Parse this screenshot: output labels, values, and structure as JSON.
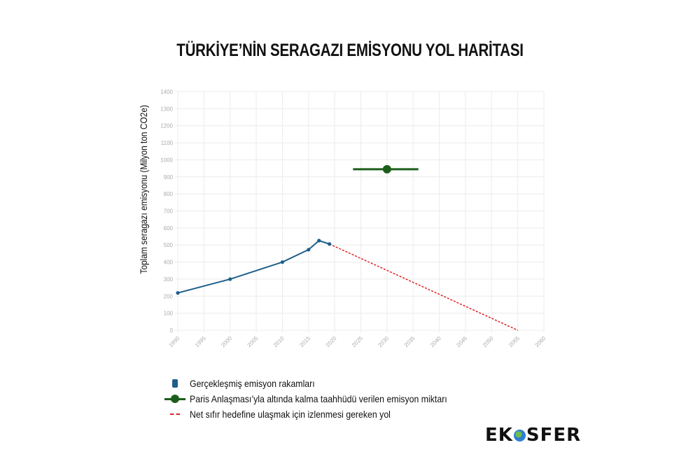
{
  "title": "TÜRKİYE’NİN SERAGAZI EMİSYONU YOL HARİTASI",
  "axes": {
    "ylabel": "Toplam seragazı emisyonu (Milyon ton CO2e)",
    "yticks": [
      "0",
      "100",
      "200",
      "300",
      "400",
      "500",
      "600",
      "700",
      "800",
      "900",
      "1000",
      "1100",
      "1200",
      "1300",
      "1400"
    ],
    "xticks": [
      "1990",
      "1995",
      "2000",
      "2005",
      "2010",
      "2015",
      "2020",
      "2025",
      "2030",
      "2035",
      "2040",
      "2045",
      "2050",
      "2055",
      "2060"
    ]
  },
  "legend": {
    "items": [
      {
        "label": "Gerçekleşmiş emisyon rakamları",
        "symbol": "blue-square"
      },
      {
        "label": "Paris Anlaşması’yla altında kalma taahhüdü verilen emisyon miktarı",
        "symbol": "green-line-dot"
      },
      {
        "label": "Net sıfır hedefine ulaşmak için izlenmesi gereken yol",
        "symbol": "red-dashed-line"
      }
    ]
  },
  "logo": {
    "left": "EK",
    "right": "SFER"
  },
  "colors": {
    "actual": "#1f5f8b",
    "paris": "#1b5e1b",
    "netzero": "#e02020",
    "grid": "#ececec",
    "tick": "#aaaaaa"
  },
  "chart_data": {
    "type": "line",
    "title": "TÜRKİYE’NİN SERAGAZI EMİSYONU YOL HARİTASI",
    "xlabel": "",
    "ylabel": "Toplam seragazı emisyonu (Milyon ton CO2e)",
    "xlim": [
      1990,
      2060
    ],
    "ylim": [
      0,
      1400
    ],
    "grid": true,
    "legend_position": "bottom",
    "series": [
      {
        "name": "Gerçekleşmiş emisyon rakamları",
        "style": "solid-line-markers",
        "x": [
          1990,
          2000,
          2010,
          2015,
          2017,
          2019
        ],
        "y": [
          219,
          300,
          400,
          473,
          526,
          506
        ]
      },
      {
        "name": "Paris Anlaşması’yla altında kalma taahhüdü verilen emisyon miktarı",
        "style": "point-with-horizontal-bar",
        "x": [
          2030
        ],
        "y": [
          945
        ],
        "x_range": [
          2023.5,
          2036
        ]
      },
      {
        "name": "Net sıfır hedefine ulaşmak için izlenmesi gereken yol",
        "style": "dashed-line",
        "x": [
          2019,
          2055
        ],
        "y": [
          506,
          0
        ]
      }
    ]
  }
}
